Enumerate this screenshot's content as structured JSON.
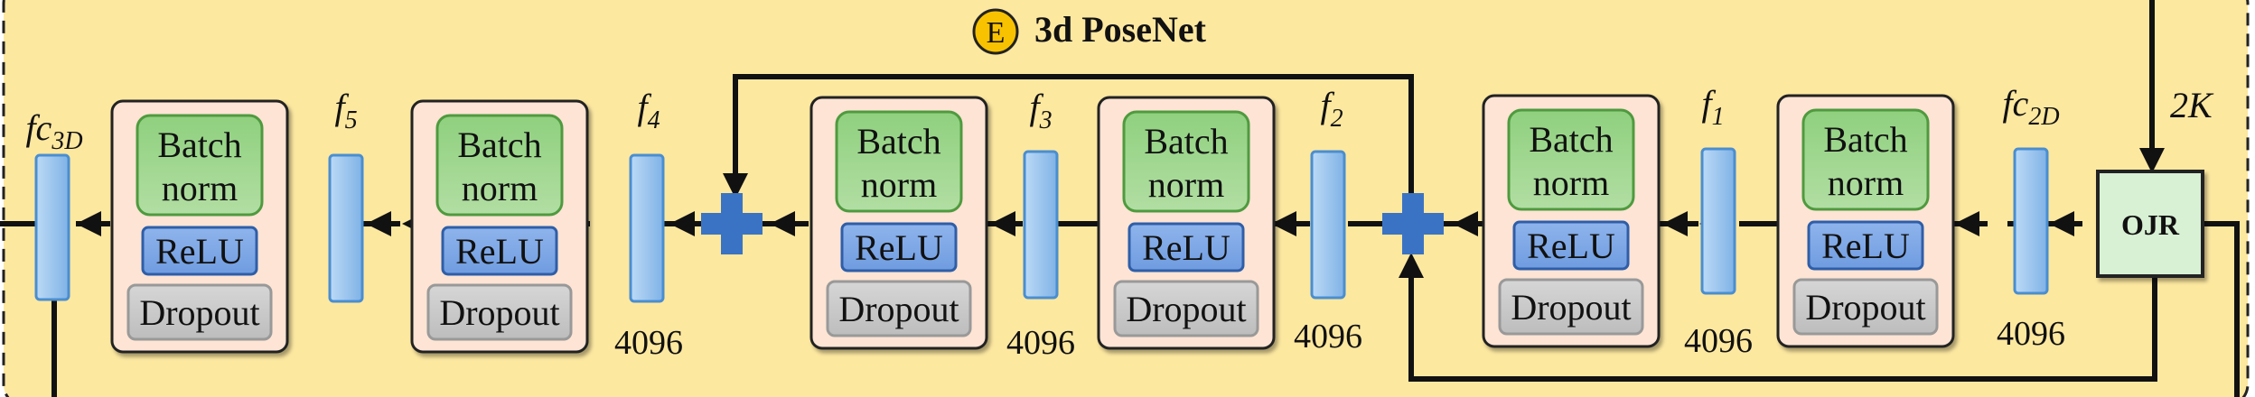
{
  "title": {
    "badge": "E",
    "text": "3d PoseNet"
  },
  "input": {
    "dim_label": "2K",
    "ojr_label": "OJR"
  },
  "feature_layers": [
    {
      "name": "fc",
      "sub": "2D",
      "size": "4096"
    },
    {
      "name": "f",
      "sub": "1",
      "size": "4096"
    },
    {
      "name": "f",
      "sub": "2",
      "size": "4096"
    },
    {
      "name": "f",
      "sub": "3",
      "size": "4096"
    },
    {
      "name": "f",
      "sub": "4",
      "size": "4096"
    },
    {
      "name": "f",
      "sub": "5",
      "size": ""
    },
    {
      "name": "fc",
      "sub": "3D",
      "size": ""
    }
  ],
  "block_labels": {
    "batch": "Batch",
    "norm": "norm",
    "relu": "ReLU",
    "dropout": "Dropout"
  },
  "colors": {
    "panel_bg": "#fde8a0",
    "block_bg": "#fde4d4",
    "batchnorm": "#8fcf7c",
    "relu": "#7fa8e8",
    "dropout": "#c8c8c8",
    "feature": "#7fb6e6",
    "plus": "#3b73c4",
    "ojr": "#d8f0d4",
    "title_badge": "#f8c200"
  }
}
